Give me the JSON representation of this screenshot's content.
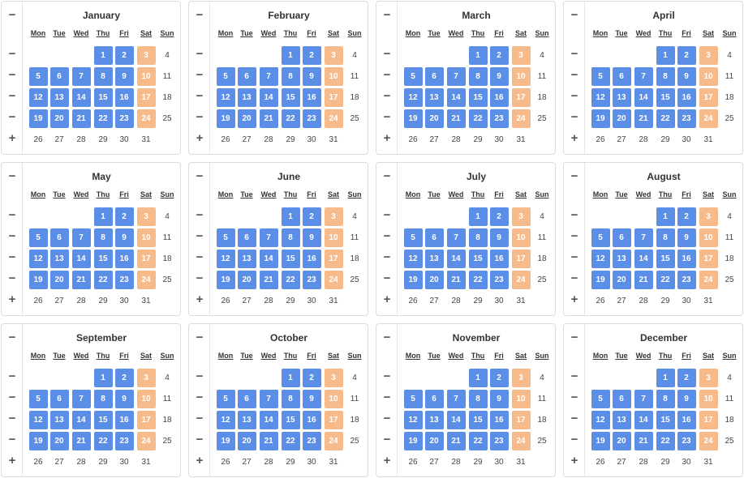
{
  "weekdays": [
    "Mon",
    "Tue",
    "Wed",
    "Thu",
    "Fri",
    "Sat",
    "Sun"
  ],
  "controls": {
    "collapse": "−",
    "expand": "+"
  },
  "colors": {
    "selected": "#5b8ee6",
    "weekend_selected": "#f7bb8b"
  },
  "months": [
    {
      "name": "January"
    },
    {
      "name": "February"
    },
    {
      "name": "March"
    },
    {
      "name": "April"
    },
    {
      "name": "May"
    },
    {
      "name": "June"
    },
    {
      "name": "July"
    },
    {
      "name": "August"
    },
    {
      "name": "September"
    },
    {
      "name": "October"
    },
    {
      "name": "November"
    },
    {
      "name": "December"
    }
  ],
  "weeks": [
    [
      null,
      null,
      null,
      1,
      2,
      3,
      4
    ],
    [
      5,
      6,
      7,
      8,
      9,
      10,
      11
    ],
    [
      12,
      13,
      14,
      15,
      16,
      17,
      18
    ],
    [
      19,
      20,
      21,
      22,
      23,
      24,
      25
    ],
    [
      26,
      27,
      28,
      29,
      30,
      31,
      null
    ]
  ],
  "selected_days": [
    1,
    2,
    5,
    6,
    7,
    8,
    9,
    12,
    13,
    14,
    15,
    16,
    19,
    20,
    21,
    22,
    23
  ],
  "weekend_selected_days": [
    3,
    10,
    17,
    24
  ],
  "week_row_controls": [
    "−",
    "−",
    "−",
    "−",
    "+"
  ]
}
